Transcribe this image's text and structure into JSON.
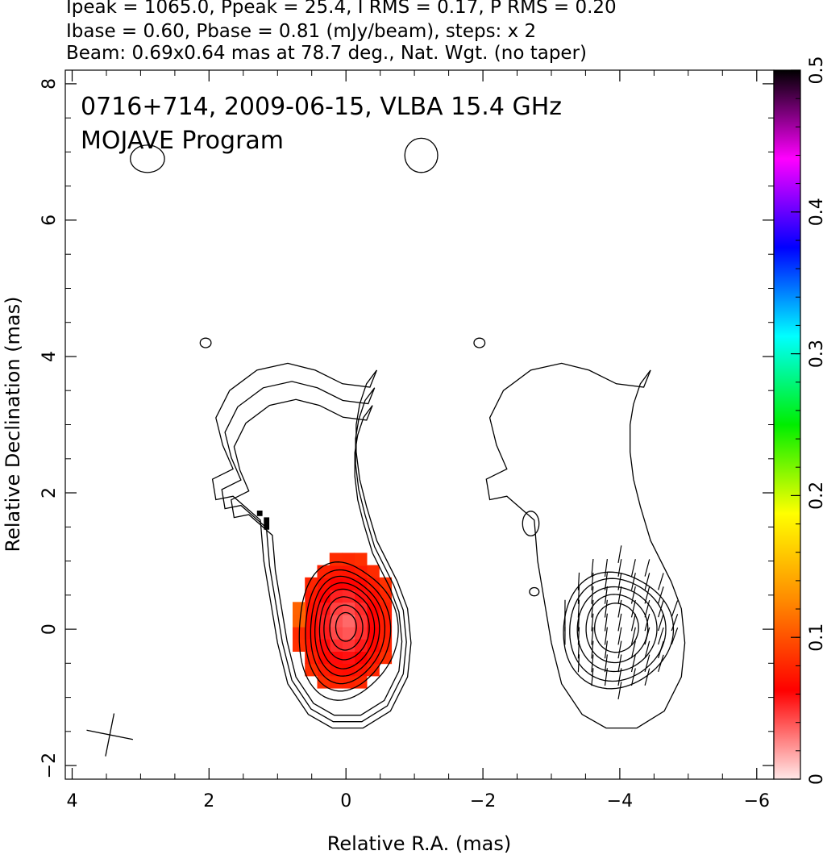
{
  "header": {
    "line1": "Ipeak = 1065.0, Ppeak = 25.4, I RMS = 0.17, P RMS = 0.20",
    "line2": "Ibase = 0.60, Pbase = 0.81 (mJy/beam), steps: x 2",
    "line3": "Beam: 0.69x0.64 mas at 78.7 deg., Nat. Wgt. (no taper)"
  },
  "chart_data": {
    "type": "heatmap",
    "title": "0716+714, 2009-06-15, VLBA 15.4 GHz",
    "subtitle": "MOJAVE Program",
    "xlabel": "Relative R.A. (mas)",
    "ylabel": "Relative Declination (mas)",
    "xlim": [
      4.1,
      -6.25
    ],
    "ylim": [
      -2.2,
      8.2
    ],
    "x_ticks": [
      4,
      2,
      0,
      -2,
      -4,
      -6
    ],
    "x_tick_labels": [
      "4",
      "2",
      "0",
      "−2",
      "−4",
      "−6"
    ],
    "y_ticks": [
      -2,
      0,
      2,
      4,
      6,
      8
    ],
    "y_tick_labels": [
      "−2",
      "0",
      "2",
      "4",
      "6",
      "8"
    ],
    "colorbar": {
      "range": [
        0,
        0.5
      ],
      "ticks": [
        0,
        0.1,
        0.2,
        0.3,
        0.4,
        0.5
      ],
      "tick_labels": [
        "0",
        "0.1",
        "0.2",
        "0.3",
        "0.4",
        "0.5"
      ],
      "stops": [
        "#ffe8e8",
        "#ff0000",
        "#ff8800",
        "#ffff00",
        "#00ee00",
        "#00ffff",
        "#0000ff",
        "#ff00ff",
        "#000000"
      ]
    },
    "panels": [
      {
        "name": "left",
        "ra_offset": 0,
        "fractional_polarization_colored": true
      },
      {
        "name": "right",
        "ra_offset": -4,
        "evpa_vectors": true
      }
    ],
    "beam": {
      "major_mas": 0.69,
      "minor_mas": 0.64,
      "pa_deg": 78.7,
      "center": [
        3.45,
        -1.55
      ]
    },
    "contour_levels_mJy_per_beam": [
      0.6,
      1.2,
      2.4,
      4.8,
      9.6,
      19.2,
      38.4,
      76.8,
      153.6,
      307.2,
      614.4
    ]
  }
}
